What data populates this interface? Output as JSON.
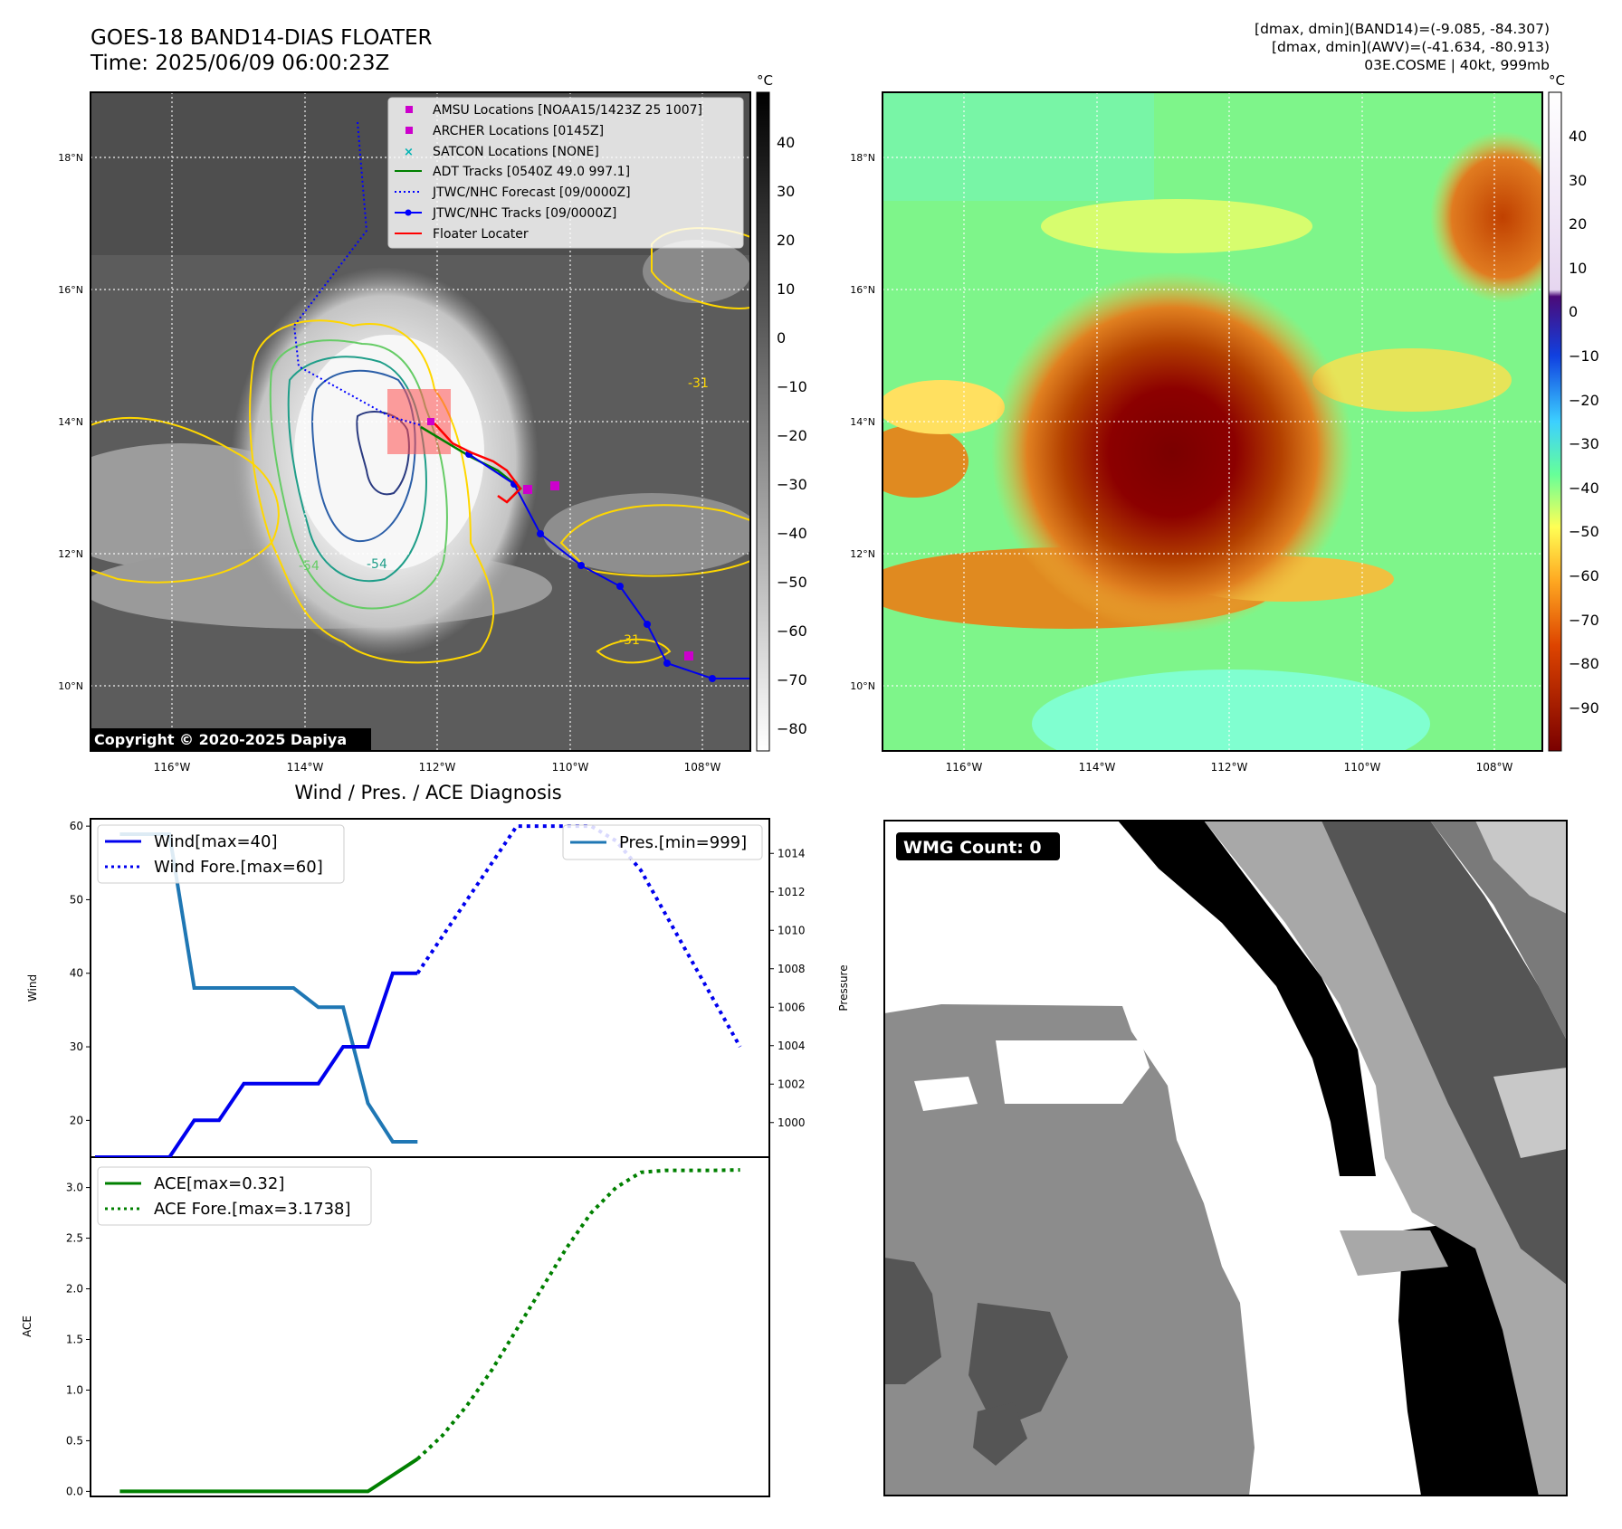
{
  "header": {
    "title_line1": "GOES-18 BAND14-DIAS FLOATER",
    "title_line2": "Time: 2025/06/09 06:00:23Z",
    "info_line1": "[dmax, dmin](BAND14)=(-9.085, -84.307)",
    "info_line2": "[dmax, dmin](AWV)=(-41.634, -80.913)",
    "info_line3": "03E.COSME | 40kt, 999mb"
  },
  "map_ir": {
    "lon_ticks": [
      "116°W",
      "114°W",
      "112°W",
      "110°W",
      "108°W"
    ],
    "lat_ticks": [
      "18°N",
      "16°N",
      "14°N",
      "12°N",
      "10°N"
    ],
    "colorbar_unit": "°C",
    "colorbar_ticks": [
      "40",
      "30",
      "20",
      "10",
      "0",
      "−10",
      "−20",
      "−30",
      "−40",
      "−50",
      "−60",
      "−70",
      "−80"
    ],
    "contour_labels": [
      "-54",
      "-31",
      "-31",
      "-54"
    ],
    "copyright": "Copyright © 2020-2025 Dapiya",
    "legend": [
      {
        "label": "AMSU Locations [NOAA15/1423Z 25 1007]",
        "color": "#cc00cc"
      },
      {
        "label": "ARCHER Locations [0145Z]",
        "color": "#cc00cc"
      },
      {
        "label": "SATCON Locations [NONE]",
        "color": "#00b3b3"
      },
      {
        "label": "ADT Tracks [0540Z 49.0 997.1]",
        "color": "#008000"
      },
      {
        "label": "JTWC/NHC Forecast [09/0000Z]",
        "color": "#0000ff"
      },
      {
        "label": "JTWC/NHC Tracks [09/0000Z]",
        "color": "#0000ff"
      },
      {
        "label": "Floater Locater",
        "color": "#ff0000"
      }
    ]
  },
  "map_wv": {
    "lon_ticks": [
      "116°W",
      "114°W",
      "112°W",
      "110°W",
      "108°W"
    ],
    "lat_ticks": [
      "18°N",
      "16°N",
      "14°N",
      "12°N",
      "10°N"
    ],
    "colorbar_unit": "°C",
    "colorbar_ticks": [
      "40",
      "30",
      "20",
      "10",
      "0",
      "−10",
      "−20",
      "−30",
      "−40",
      "−50",
      "−60",
      "−70",
      "−80",
      "−90"
    ]
  },
  "wmg": {
    "label": "WMG Count: 0"
  },
  "chart_data": [
    {
      "type": "line",
      "title": "Wind / Pres. / ACE Diagnosis",
      "ylabel": "Wind",
      "ylabel_right": "Pressure",
      "ylim": [
        15,
        61
      ],
      "ylim_right": [
        998.2,
        1015.8
      ],
      "xlim": [
        0,
        27
      ],
      "yticks": [
        20,
        30,
        40,
        50,
        60
      ],
      "yticks_right": [
        1000,
        1002,
        1004,
        1006,
        1008,
        1010,
        1012,
        1014
      ],
      "legend_left": [
        "Wind[max=40]",
        "Wind Fore.[max=60]"
      ],
      "legend_right": [
        "Pres.[min=999]"
      ],
      "series": [
        {
          "name": "Wind[max=40]",
          "style": "solid",
          "color": "#0000ee",
          "axis": "left",
          "x": [
            0,
            1,
            2,
            3,
            4,
            5,
            6,
            7,
            8,
            9,
            10,
            11,
            12,
            13,
            14,
            15
          ],
          "y": [
            15,
            15,
            15,
            15,
            20,
            20,
            25,
            25,
            25,
            25,
            30,
            30,
            40,
            40,
            null,
            null
          ]
        },
        {
          "name": "Wind Fore.[max=60]",
          "style": "dotted",
          "color": "#0000ee",
          "axis": "left",
          "x": [
            13,
            14,
            15,
            16,
            17,
            18,
            19,
            20,
            21,
            22,
            23,
            24,
            25,
            26
          ],
          "y": [
            40,
            45,
            50,
            55,
            60,
            60,
            60,
            60,
            58,
            54,
            48,
            42,
            36,
            30
          ]
        },
        {
          "name": "Pres.[min=999]",
          "style": "solid",
          "color": "#1f77b4",
          "axis": "right",
          "x": [
            1,
            2,
            3,
            4,
            5,
            6,
            7,
            8,
            9,
            10,
            11,
            12,
            13
          ],
          "y": [
            1015,
            1015,
            1015,
            1007,
            1007,
            1007,
            1007,
            1007,
            1006,
            1006,
            1001,
            999,
            999
          ]
        }
      ]
    },
    {
      "type": "line",
      "ylabel": "ACE",
      "ylim": [
        -0.05,
        3.3
      ],
      "xlim": [
        0,
        27
      ],
      "yticks": [
        0.0,
        0.5,
        1.0,
        1.5,
        2.0,
        2.5,
        3.0
      ],
      "yticklabels": [
        "0.0",
        "0.5",
        "1.0",
        "1.5",
        "2.0",
        "2.5",
        "3.0"
      ],
      "legend": [
        "ACE[max=0.32]",
        "ACE Fore.[max=3.1738]"
      ],
      "series": [
        {
          "name": "ACE[max=0.32]",
          "style": "solid",
          "color": "#008000",
          "x": [
            1,
            2,
            3,
            4,
            5,
            6,
            7,
            8,
            9,
            10,
            11,
            12,
            13
          ],
          "y": [
            0,
            0,
            0,
            0,
            0,
            0,
            0,
            0,
            0,
            0,
            0,
            0.16,
            0.32
          ]
        },
        {
          "name": "ACE Fore.[max=3.1738]",
          "style": "dotted",
          "color": "#008000",
          "x": [
            13,
            14,
            15,
            16,
            17,
            18,
            19,
            20,
            21,
            22,
            23,
            24,
            25,
            26
          ],
          "y": [
            0.32,
            0.55,
            0.85,
            1.2,
            1.6,
            2.0,
            2.4,
            2.75,
            3.0,
            3.15,
            3.17,
            3.17,
            3.17,
            3.1738
          ]
        }
      ]
    }
  ]
}
